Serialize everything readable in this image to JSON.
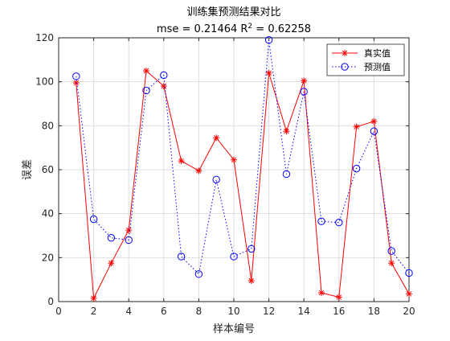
{
  "chart_data": {
    "type": "line",
    "title": "训练集预测结果对比",
    "subtitle_prefix": "mse = 0.21464 R",
    "subtitle_sup": "2",
    "subtitle_suffix": " = 0.62258",
    "xlabel": "样本编号",
    "ylabel": "误差",
    "xlim": [
      0,
      20
    ],
    "ylim": [
      0,
      120
    ],
    "x_ticks": [
      0,
      2,
      4,
      6,
      8,
      10,
      12,
      14,
      16,
      18,
      20
    ],
    "y_ticks": [
      0,
      20,
      40,
      60,
      80,
      100,
      120
    ],
    "grid": true,
    "legend_position": "top-right",
    "x": [
      1,
      2,
      3,
      4,
      5,
      6,
      7,
      8,
      9,
      10,
      11,
      12,
      13,
      14,
      15,
      16,
      17,
      18,
      19,
      20
    ],
    "series": [
      {
        "name": "真实值",
        "color": "#ff0000",
        "line_style": "solid",
        "marker": "asterisk",
        "values": [
          99.5,
          1.5,
          17.5,
          32.5,
          105,
          98,
          64,
          59.5,
          74.5,
          64.5,
          9.5,
          104,
          77.5,
          100.5,
          4,
          2,
          79.5,
          82,
          17.5,
          3.5
        ]
      },
      {
        "name": "预测值",
        "color": "#0000ff",
        "line_style": "dotted",
        "marker": "circle",
        "values": [
          102.5,
          37.5,
          29,
          28,
          96,
          103,
          20.5,
          12.5,
          55.5,
          20.5,
          24,
          119,
          58,
          95.5,
          36.5,
          36,
          60.5,
          77.5,
          23,
          13
        ]
      }
    ]
  }
}
